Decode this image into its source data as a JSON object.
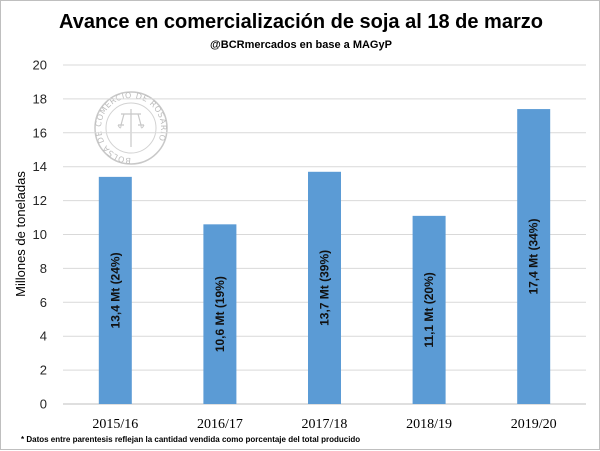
{
  "chart_data": {
    "type": "bar",
    "title": "Avance en comercialización de soja al 18 de marzo",
    "subtitle": "@BCRmercados en base a MAGyP",
    "ylabel": "Millones de toneladas",
    "xlabel": "",
    "categories": [
      "2015/16",
      "2016/17",
      "2017/18",
      "2018/19",
      "2019/20"
    ],
    "values": [
      13.4,
      10.6,
      13.7,
      11.1,
      17.4
    ],
    "data_labels": [
      "13,4 Mt (24%)",
      "10,6 Mt (19%)",
      "13,7 Mt (39%)",
      "11,1 Mt (20%)",
      "17,4 Mt (34%)"
    ],
    "ylim": [
      0,
      20
    ],
    "yticks": [
      0,
      2,
      4,
      6,
      8,
      10,
      12,
      14,
      16,
      18,
      20
    ],
    "grid": true,
    "bar_color": "#5b9bd5",
    "footnote": "* Datos entre parentesis reflejan la cantidad vendida como porcentaje del total producido",
    "watermark_text": "BOLSA DE COMERCIO DE ROSARIO"
  }
}
